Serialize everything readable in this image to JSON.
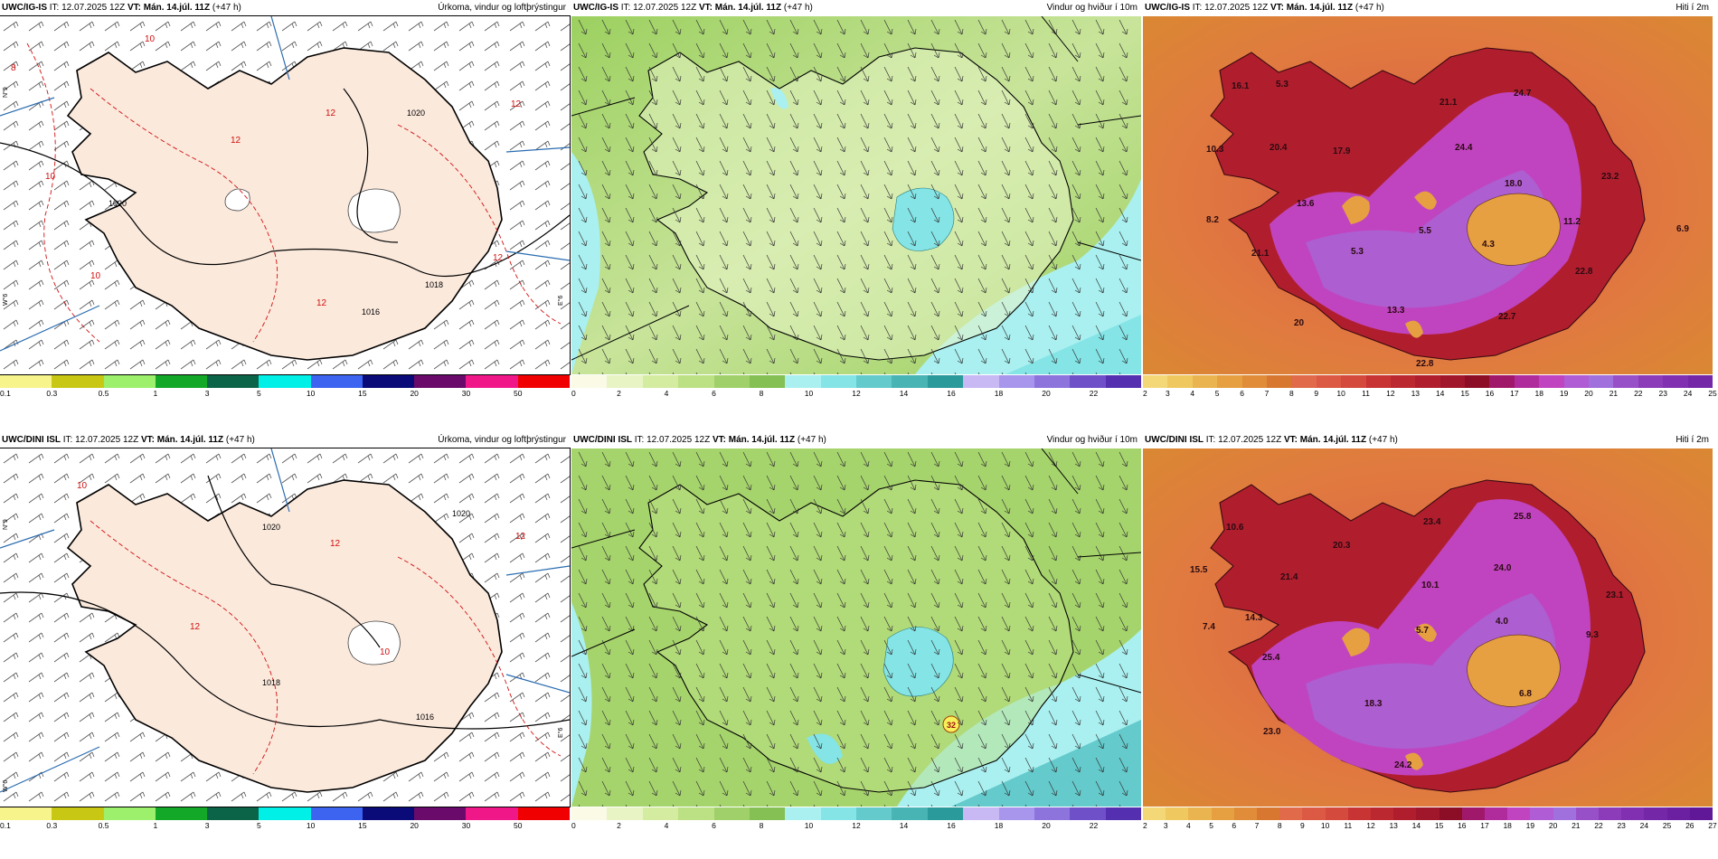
{
  "rows": [
    {
      "precip": {
        "model": "UWC/IG-IS",
        "it": "IT: 12.07.2025 12Z",
        "vt": "VT: Mán. 14.júl. 11Z",
        "lead": "(+47 h)",
        "title": "Úrkoma, vindur og loftþrýstingur"
      },
      "wind": {
        "model": "UWC/IG-IS",
        "it": "IT: 12.07.2025 12Z",
        "vt": "VT: Mán. 14.júl. 11Z",
        "lead": "(+47 h)",
        "title": "Vindur og hviður í 10m"
      },
      "temp": {
        "model": "UWC/IG-IS",
        "it": "IT: 12.07.2025 12Z",
        "vt": "VT: Mán. 14.júl. 11Z",
        "lead": "(+47 h)",
        "title": "Hiti í 2m",
        "values": [
          "16.1",
          "5.3",
          "10.3",
          "20.4",
          "17.9",
          "24.7",
          "21.1",
          "24.4",
          "8.2",
          "13.6",
          "18.0",
          "23.2",
          "21.1",
          "5.3",
          "5.5",
          "4.3",
          "11.2",
          "6.9",
          "13.3",
          "22.8",
          "20",
          "22.7",
          "22.8"
        ]
      }
    },
    {
      "precip": {
        "model": "UWC/DINI ISL",
        "it": "IT: 12.07.2025 12Z",
        "vt": "VT: Mán. 14.júl. 11Z",
        "lead": "(+47 h)",
        "title": "Úrkoma, vindur og loftþrýstingur"
      },
      "wind": {
        "model": "UWC/DINI ISL",
        "it": "IT: 12.07.2025 12Z",
        "vt": "VT: Mán. 14.júl. 11Z",
        "lead": "(+47 h)",
        "title": "Vindur og hviður í 10m"
      },
      "temp": {
        "model": "UWC/DINI ISL",
        "it": "IT: 12.07.2025 12Z",
        "vt": "VT: Mán. 14.júl. 11Z",
        "lead": "(+47 h)",
        "title": "Hiti í 2m",
        "values": [
          "10.6",
          "20.3",
          "23.4",
          "25.8",
          "15.5",
          "21.4",
          "24.0",
          "10.1",
          "14.3",
          "23.1",
          "4.0",
          "7.4",
          "5.7",
          "9.3",
          "25.4",
          "6.8",
          "18.3",
          "23.0",
          "24.2"
        ]
      }
    }
  ],
  "precip_scale": {
    "colors": [
      "#f7f48c",
      "#c8c814",
      "#9cf06c",
      "#14a828",
      "#0c6448",
      "#00f0e8",
      "#3c64f0",
      "#0a0a78",
      "#6a0a6a",
      "#f01888",
      "#f00000"
    ],
    "labels": [
      "0.1",
      "0.3",
      "0.5",
      "1",
      "3",
      "5",
      "10",
      "15",
      "20",
      "30",
      "50"
    ]
  },
  "wind_scale": {
    "colors": [
      "#fafae6",
      "#e8f4c4",
      "#d4eca0",
      "#bce084",
      "#a0d06a",
      "#84c054",
      "#aaf0f0",
      "#84e4e6",
      "#64cacc",
      "#48b4b4",
      "#2a9a9a",
      "#c8b8f4",
      "#a896ec",
      "#8c74dc",
      "#7050c8",
      "#5430b0"
    ],
    "labels": [
      "0",
      "2",
      "4",
      "6",
      "8",
      "10",
      "12",
      "14",
      "16",
      "18",
      "20",
      "22"
    ]
  },
  "temp_scale_row1": {
    "colors": [
      "#f4d878",
      "#f0c860",
      "#eab450",
      "#e6a042",
      "#e08c38",
      "#d87830",
      "#e06a4a",
      "#dc5a44",
      "#d44a3c",
      "#c83434",
      "#bc2830",
      "#b01e2e",
      "#a0162a",
      "#8c0e26",
      "#a0186a",
      "#b02c9c",
      "#c044c0",
      "#b05cd4",
      "#a070dc",
      "#9850c8",
      "#8c3cb8",
      "#8030b0",
      "#7428a8"
    ],
    "labels": [
      "2",
      "3",
      "4",
      "5",
      "6",
      "7",
      "8",
      "9",
      "10",
      "11",
      "12",
      "13",
      "14",
      "15",
      "16",
      "17",
      "18",
      "19",
      "20",
      "21",
      "22",
      "23",
      "24",
      "25"
    ]
  },
  "temp_scale_row2": {
    "colors": [
      "#f4d878",
      "#f0c860",
      "#eab450",
      "#e6a042",
      "#e08c38",
      "#d87830",
      "#e06a4a",
      "#dc5a44",
      "#d44a3c",
      "#c83434",
      "#bc2830",
      "#b01e2e",
      "#a0162a",
      "#8c0e26",
      "#a0186a",
      "#b02c9c",
      "#c044c0",
      "#b05cd4",
      "#a070dc",
      "#9850c8",
      "#8c3cb8",
      "#8030b0",
      "#7428a8",
      "#6a20a0",
      "#601898"
    ],
    "labels": [
      "2",
      "3",
      "4",
      "5",
      "6",
      "7",
      "8",
      "9",
      "10",
      "11",
      "12",
      "13",
      "14",
      "15",
      "16",
      "17",
      "18",
      "19",
      "20",
      "21",
      "22",
      "23",
      "24",
      "25",
      "26",
      "27"
    ]
  },
  "precip_map_labels": {
    "isobars": [
      "1016",
      "1018",
      "1020",
      "1020"
    ],
    "isotherms": [
      "8",
      "10",
      "10",
      "12",
      "12",
      "12",
      "12",
      "12",
      "10"
    ],
    "meridian": [
      "N°9",
      "E°6",
      "W°6"
    ]
  },
  "row2_wind_gust": "32"
}
